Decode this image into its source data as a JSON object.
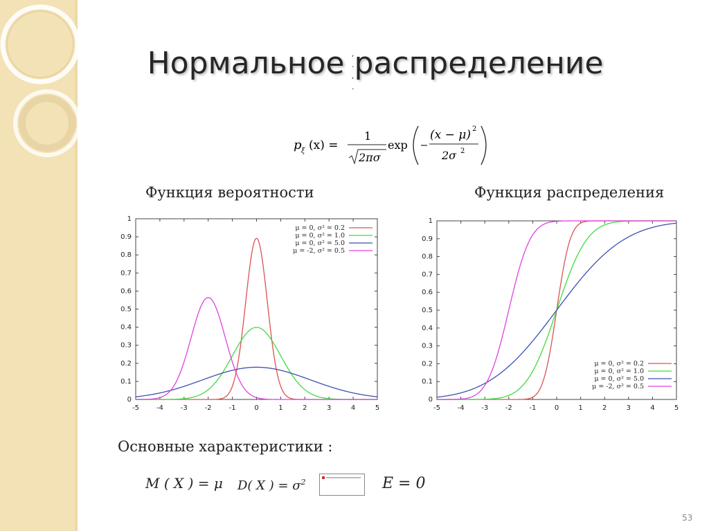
{
  "title": "Нормальное распределение",
  "formula": {
    "lhs": "p",
    "lhs_sub": "ξ",
    "lhs_arg": "(x) =",
    "num": "1",
    "den": "2πσ",
    "exp": "exp",
    "inner_num": "(x − μ)",
    "inner_num_sup": "2",
    "inner_den": "2σ",
    "inner_den_sup": "2"
  },
  "captions": {
    "pdf": "Функция вероятности",
    "cdf": "Функция распределения"
  },
  "characteristics": {
    "label": "Основные характеристики :",
    "mean": "M ( X ) = μ",
    "variance": "D( X ) = σ",
    "variance_sup": "2",
    "excess": "E = 0"
  },
  "page_number": "53",
  "chart_data": [
    {
      "type": "line",
      "x_range": [
        -5,
        5
      ],
      "ylim": [
        0,
        1
      ],
      "xticks": [
        "-5",
        "-4",
        "-3",
        "-2",
        "-1",
        "0",
        "1",
        "2",
        "3",
        "4",
        "5"
      ],
      "yticks": [
        "0",
        "0.1",
        "0.2",
        "0.3",
        "0.4",
        "0.5",
        "0.6",
        "0.7",
        "0.8",
        "0.9",
        "1"
      ],
      "legend_position": "top-right",
      "series": [
        {
          "name": "μ = 0, σ² = 0.2",
          "mu": 0,
          "var": 0.2,
          "color": "#d9534f"
        },
        {
          "name": "μ = 0, σ² = 1.0",
          "mu": 0,
          "var": 1.0,
          "color": "#3ddc3d"
        },
        {
          "name": "μ = 0, σ² = 5.0",
          "mu": 0,
          "var": 5.0,
          "color": "#3b4fb0"
        },
        {
          "name": "μ = -2, σ² = 0.5",
          "mu": -2,
          "var": 0.5,
          "color": "#e040e0"
        }
      ]
    },
    {
      "type": "line",
      "x_range": [
        -5,
        5
      ],
      "ylim": [
        0,
        1
      ],
      "xticks": [
        "-5",
        "-4",
        "-3",
        "-2",
        "-1",
        "0",
        "1",
        "2",
        "3",
        "4",
        "5"
      ],
      "yticks": [
        "0",
        "0.1",
        "0.2",
        "0.3",
        "0.4",
        "0.5",
        "0.6",
        "0.7",
        "0.8",
        "0.9",
        "1"
      ],
      "legend_position": "bottom-right",
      "series": [
        {
          "name": "μ = 0, σ² = 0.2",
          "mu": 0,
          "var": 0.2,
          "color": "#d9534f"
        },
        {
          "name": "μ = 0, σ² = 1.0",
          "mu": 0,
          "var": 1.0,
          "color": "#3ddc3d"
        },
        {
          "name": "μ = 0, σ² = 5.0",
          "mu": 0,
          "var": 5.0,
          "color": "#3b4fb0"
        },
        {
          "name": "μ = -2, σ² = 0.5",
          "mu": -2,
          "var": 0.5,
          "color": "#e040e0"
        }
      ]
    }
  ]
}
